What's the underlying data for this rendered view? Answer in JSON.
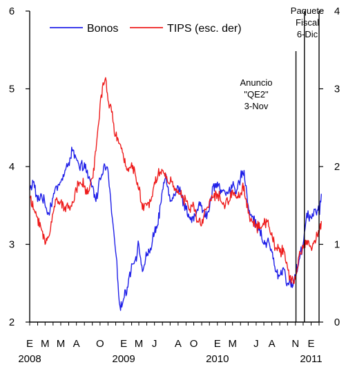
{
  "chart_data": {
    "type": "line",
    "title": "",
    "x_range": [
      "2008-01",
      "2011-02"
    ],
    "y_left": {
      "range": [
        2,
        6
      ],
      "ticks": [
        "2",
        "3",
        "4",
        "5",
        "6"
      ]
    },
    "y_right": {
      "range": [
        0,
        4
      ],
      "ticks": [
        "0",
        "1",
        "2",
        "3",
        "4"
      ]
    },
    "x_month_labels": [
      "E",
      "M",
      "M",
      "A",
      "O",
      "E",
      "M",
      "J",
      "A",
      "O",
      "E",
      "M",
      "J",
      "A",
      "N",
      "E"
    ],
    "x_month_dates": [
      "2008-01",
      "2008-03",
      "2008-05",
      "2008-07",
      "2008-10",
      "2009-01",
      "2009-03",
      "2009-05",
      "2009-08",
      "2009-10",
      "2010-01",
      "2010-03",
      "2010-06",
      "2010-08",
      "2010-11",
      "2011-01"
    ],
    "x_year_labels": [
      {
        "date": "2008-01",
        "label": "2008"
      },
      {
        "date": "2009-01",
        "label": "2009"
      },
      {
        "date": "2010-01",
        "label": "2010"
      },
      {
        "date": "2011-01",
        "label": "2011"
      }
    ],
    "legend": {
      "position": "top",
      "items": [
        {
          "name": "Bonos",
          "color": "#1f1fe8"
        },
        {
          "name": "TIPS (esc. der)",
          "color": "#ee1c1c"
        }
      ]
    },
    "annotations": [
      {
        "date": "2010-11-03",
        "lines": [
          "Anuncio",
          "\"QE2\"",
          "3-Nov"
        ]
      },
      {
        "date": "2010-12-06",
        "lines": [
          "Paquete",
          "Fiscal",
          "6-Dic"
        ]
      }
    ],
    "series": [
      {
        "name": "Bonos",
        "axis": "left",
        "color": "#1f1fe8",
        "points": [
          [
            "2008-01-01",
            3.7
          ],
          [
            "2008-01-15",
            3.8
          ],
          [
            "2008-02-01",
            3.55
          ],
          [
            "2008-02-15",
            3.65
          ],
          [
            "2008-03-01",
            3.5
          ],
          [
            "2008-03-15",
            3.4
          ],
          [
            "2008-04-01",
            3.6
          ],
          [
            "2008-04-15",
            3.75
          ],
          [
            "2008-05-01",
            3.8
          ],
          [
            "2008-05-15",
            3.9
          ],
          [
            "2008-06-01",
            4.05
          ],
          [
            "2008-06-15",
            4.2
          ],
          [
            "2008-07-01",
            4.1
          ],
          [
            "2008-07-15",
            3.95
          ],
          [
            "2008-08-01",
            4.05
          ],
          [
            "2008-08-15",
            3.85
          ],
          [
            "2008-09-01",
            3.75
          ],
          [
            "2008-09-15",
            3.55
          ],
          [
            "2008-10-01",
            3.85
          ],
          [
            "2008-10-15",
            4.0
          ],
          [
            "2008-11-01",
            3.95
          ],
          [
            "2008-11-15",
            3.4
          ],
          [
            "2008-12-01",
            2.9
          ],
          [
            "2008-12-10",
            2.5
          ],
          [
            "2008-12-20",
            2.15
          ],
          [
            "2009-01-01",
            2.3
          ],
          [
            "2009-01-15",
            2.45
          ],
          [
            "2009-02-01",
            2.75
          ],
          [
            "2009-02-15",
            2.8
          ],
          [
            "2009-03-01",
            3.0
          ],
          [
            "2009-03-15",
            2.65
          ],
          [
            "2009-04-01",
            2.85
          ],
          [
            "2009-04-15",
            2.95
          ],
          [
            "2009-05-01",
            3.15
          ],
          [
            "2009-05-15",
            3.25
          ],
          [
            "2009-06-01",
            3.7
          ],
          [
            "2009-06-15",
            3.9
          ],
          [
            "2009-07-01",
            3.55
          ],
          [
            "2009-07-15",
            3.65
          ],
          [
            "2009-08-01",
            3.75
          ],
          [
            "2009-08-15",
            3.6
          ],
          [
            "2009-09-01",
            3.45
          ],
          [
            "2009-09-15",
            3.35
          ],
          [
            "2009-10-01",
            3.3
          ],
          [
            "2009-10-15",
            3.45
          ],
          [
            "2009-11-01",
            3.5
          ],
          [
            "2009-11-15",
            3.35
          ],
          [
            "2009-12-01",
            3.45
          ],
          [
            "2009-12-15",
            3.75
          ],
          [
            "2010-01-01",
            3.8
          ],
          [
            "2010-01-15",
            3.7
          ],
          [
            "2010-02-01",
            3.65
          ],
          [
            "2010-02-15",
            3.7
          ],
          [
            "2010-03-01",
            3.75
          ],
          [
            "2010-03-15",
            3.65
          ],
          [
            "2010-04-01",
            3.85
          ],
          [
            "2010-04-15",
            3.95
          ],
          [
            "2010-05-01",
            3.5
          ],
          [
            "2010-05-15",
            3.35
          ],
          [
            "2010-06-01",
            3.25
          ],
          [
            "2010-06-15",
            3.2
          ],
          [
            "2010-07-01",
            3.0
          ],
          [
            "2010-07-15",
            3.05
          ],
          [
            "2010-08-01",
            2.9
          ],
          [
            "2010-08-15",
            2.65
          ],
          [
            "2010-09-01",
            2.6
          ],
          [
            "2010-09-15",
            2.7
          ],
          [
            "2010-10-01",
            2.5
          ],
          [
            "2010-10-15",
            2.45
          ],
          [
            "2010-11-01",
            2.6
          ],
          [
            "2010-11-15",
            2.8
          ],
          [
            "2010-12-01",
            3.0
          ],
          [
            "2010-12-15",
            3.4
          ],
          [
            "2011-01-01",
            3.35
          ],
          [
            "2011-01-15",
            3.45
          ],
          [
            "2011-02-01",
            3.4
          ],
          [
            "2011-02-10",
            3.65
          ]
        ]
      },
      {
        "name": "TIPS (esc. der)",
        "axis": "right",
        "color": "#ee1c1c",
        "points": [
          [
            "2008-01-01",
            1.6
          ],
          [
            "2008-01-15",
            1.45
          ],
          [
            "2008-02-01",
            1.35
          ],
          [
            "2008-02-15",
            1.2
          ],
          [
            "2008-03-01",
            1.0
          ],
          [
            "2008-03-15",
            1.1
          ],
          [
            "2008-04-01",
            1.4
          ],
          [
            "2008-04-15",
            1.6
          ],
          [
            "2008-05-01",
            1.55
          ],
          [
            "2008-05-15",
            1.45
          ],
          [
            "2008-06-01",
            1.5
          ],
          [
            "2008-06-15",
            1.55
          ],
          [
            "2008-07-01",
            1.7
          ],
          [
            "2008-07-15",
            1.8
          ],
          [
            "2008-08-01",
            1.75
          ],
          [
            "2008-08-15",
            1.65
          ],
          [
            "2008-09-01",
            1.85
          ],
          [
            "2008-09-15",
            2.2
          ],
          [
            "2008-10-01",
            2.8
          ],
          [
            "2008-10-15",
            3.05
          ],
          [
            "2008-10-25",
            3.1
          ],
          [
            "2008-11-01",
            2.85
          ],
          [
            "2008-11-15",
            2.7
          ],
          [
            "2008-12-01",
            2.4
          ],
          [
            "2008-12-15",
            2.3
          ],
          [
            "2009-01-01",
            2.1
          ],
          [
            "2009-01-15",
            1.95
          ],
          [
            "2009-02-01",
            2.05
          ],
          [
            "2009-02-15",
            1.9
          ],
          [
            "2009-03-01",
            1.7
          ],
          [
            "2009-03-15",
            1.45
          ],
          [
            "2009-04-01",
            1.5
          ],
          [
            "2009-04-15",
            1.55
          ],
          [
            "2009-05-01",
            1.8
          ],
          [
            "2009-05-15",
            1.9
          ],
          [
            "2009-06-01",
            1.95
          ],
          [
            "2009-06-15",
            1.85
          ],
          [
            "2009-07-01",
            1.8
          ],
          [
            "2009-07-15",
            1.75
          ],
          [
            "2009-08-01",
            1.7
          ],
          [
            "2009-08-15",
            1.6
          ],
          [
            "2009-09-01",
            1.55
          ],
          [
            "2009-09-15",
            1.45
          ],
          [
            "2009-10-01",
            1.5
          ],
          [
            "2009-10-15",
            1.3
          ],
          [
            "2009-11-01",
            1.25
          ],
          [
            "2009-11-15",
            1.45
          ],
          [
            "2009-12-01",
            1.55
          ],
          [
            "2009-12-15",
            1.6
          ],
          [
            "2010-01-01",
            1.65
          ],
          [
            "2010-01-15",
            1.55
          ],
          [
            "2010-02-01",
            1.5
          ],
          [
            "2010-02-15",
            1.55
          ],
          [
            "2010-03-01",
            1.7
          ],
          [
            "2010-03-15",
            1.6
          ],
          [
            "2010-04-01",
            1.65
          ],
          [
            "2010-04-15",
            1.75
          ],
          [
            "2010-05-01",
            1.4
          ],
          [
            "2010-05-15",
            1.3
          ],
          [
            "2010-06-01",
            1.25
          ],
          [
            "2010-06-15",
            1.2
          ],
          [
            "2010-07-01",
            1.25
          ],
          [
            "2010-07-15",
            1.3
          ],
          [
            "2010-08-01",
            1.15
          ],
          [
            "2010-08-15",
            0.95
          ],
          [
            "2010-09-01",
            0.9
          ],
          [
            "2010-09-15",
            0.95
          ],
          [
            "2010-10-01",
            0.7
          ],
          [
            "2010-10-15",
            0.5
          ],
          [
            "2010-11-01",
            0.55
          ],
          [
            "2010-11-15",
            0.85
          ],
          [
            "2010-12-01",
            0.95
          ],
          [
            "2010-12-15",
            1.05
          ],
          [
            "2011-01-01",
            0.95
          ],
          [
            "2011-01-15",
            1.05
          ],
          [
            "2011-02-01",
            1.15
          ],
          [
            "2011-02-10",
            1.3
          ]
        ]
      }
    ]
  }
}
